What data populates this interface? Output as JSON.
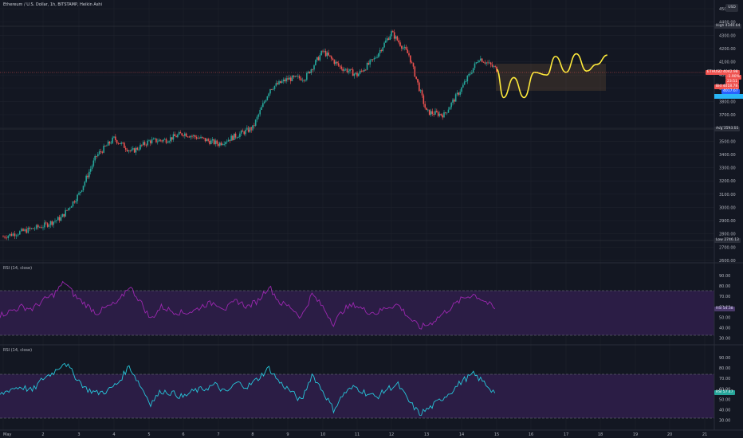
{
  "header": {
    "title": "Ethereum / U.S. Dollar, 1h, BITSTAMP, Heikin Ashi"
  },
  "rsi_panes": [
    {
      "label": "RSI (14, close)",
      "tag": "RSI",
      "value": "54.38",
      "color": "#9c27b0"
    },
    {
      "label": "RSI (14, close)",
      "tag": "RSI",
      "value": "57.47",
      "color": "#26c6da"
    }
  ],
  "price_axis": {
    "ticks": [
      "4500.00",
      "4400.00",
      "4300.00",
      "4200.00",
      "4100.00",
      "4000.00",
      "3900.00",
      "3800.00",
      "3700.00",
      "3600.00",
      "3500.00",
      "3400.00",
      "3300.00",
      "3200.00",
      "3100.00",
      "3000.00",
      "2900.00",
      "2800.00",
      "2700.00",
      "2600.00"
    ],
    "scale_badge": "USD"
  },
  "rsi_axis": {
    "pane1_ticks": [
      "90.00",
      "80.00",
      "70.00",
      "60.00",
      "50.00",
      "40.00",
      "30.00"
    ],
    "pane2_ticks": [
      "90.00",
      "80.00",
      "70.00",
      "60.00",
      "50.00",
      "40.00",
      "30.00"
    ]
  },
  "price_tags": {
    "high_label": "High",
    "high_value": "4340.64",
    "last_symbol": "ETHUSD",
    "last_value": "4042.98",
    "last_change": "-1.90%",
    "last_countdown": "23:51",
    "bid_value": "4018.78",
    "bid_label": "Bid",
    "ask_value": "4017.67",
    "avg_label": "Avg",
    "avg_value": "3593.05",
    "low_label": "Low",
    "low_value": "2746.13"
  },
  "time_axis": {
    "labels": [
      "May",
      "2",
      "3",
      "4",
      "5",
      "6",
      "7",
      "8",
      "9",
      "10",
      "11",
      "12",
      "13",
      "14",
      "15",
      "16",
      "17",
      "18",
      "19",
      "20",
      "21"
    ]
  },
  "colors": {
    "background": "#131722",
    "up": "#26a69a",
    "down": "#ef5350",
    "projection": "#ffeb3b",
    "rsi_band": "#2b1d45",
    "rsi1_line": "#9c27b0",
    "rsi2_line": "#26c6da"
  },
  "chart_data": {
    "type": "candlestick",
    "title": "Ethereum / U.S. Dollar, 1h, BITSTAMP, Heikin Ashi",
    "x_labels": [
      "May",
      "2",
      "3",
      "4",
      "5",
      "6",
      "7",
      "8",
      "9",
      "10",
      "11",
      "12",
      "13",
      "14",
      "15"
    ],
    "close_path": [
      {
        "x": "May",
        "y": 2780
      },
      {
        "x": "2",
        "y": 2860
      },
      {
        "x": "2.5",
        "y": 2920
      },
      {
        "x": "3",
        "y": 3100
      },
      {
        "x": "3.5",
        "y": 3390
      },
      {
        "x": "4",
        "y": 3520
      },
      {
        "x": "4.5",
        "y": 3420
      },
      {
        "x": "5",
        "y": 3500
      },
      {
        "x": "5.5",
        "y": 3510
      },
      {
        "x": "6",
        "y": 3560
      },
      {
        "x": "6.5",
        "y": 3520
      },
      {
        "x": "7",
        "y": 3480
      },
      {
        "x": "7.5",
        "y": 3540
      },
      {
        "x": "8",
        "y": 3600
      },
      {
        "x": "8.5",
        "y": 3900
      },
      {
        "x": "9",
        "y": 3970
      },
      {
        "x": "9.5",
        "y": 3980
      },
      {
        "x": "10",
        "y": 4180
      },
      {
        "x": "10.5",
        "y": 4060
      },
      {
        "x": "11",
        "y": 4000
      },
      {
        "x": "11.5",
        "y": 4120
      },
      {
        "x": "12",
        "y": 4320
      },
      {
        "x": "12.5",
        "y": 4150
      },
      {
        "x": "13",
        "y": 3720
      },
      {
        "x": "13.5",
        "y": 3700
      },
      {
        "x": "14",
        "y": 3900
      },
      {
        "x": "14.5",
        "y": 4130
      },
      {
        "x": "15",
        "y": 4043
      }
    ],
    "ylim": [
      2600,
      4500
    ],
    "rsi_1": [
      52,
      56,
      60,
      58,
      66,
      72,
      84,
      70,
      62,
      54,
      60,
      64,
      80,
      66,
      48,
      60,
      56,
      54,
      56,
      62,
      64,
      58,
      66,
      60,
      66,
      80,
      64,
      60,
      50,
      72,
      60,
      44,
      58,
      62,
      56,
      54,
      60,
      62,
      50,
      40,
      44,
      52,
      60,
      68,
      72,
      66,
      58
    ],
    "rsi_2": [
      54,
      60,
      62,
      58,
      70,
      76,
      86,
      72,
      60,
      56,
      58,
      66,
      82,
      64,
      46,
      58,
      56,
      52,
      58,
      60,
      64,
      56,
      66,
      62,
      70,
      80,
      66,
      58,
      48,
      74,
      58,
      40,
      56,
      62,
      56,
      52,
      60,
      64,
      48,
      36,
      42,
      50,
      58,
      68,
      74,
      66,
      56
    ],
    "rsi_levels": [
      70,
      30
    ]
  }
}
